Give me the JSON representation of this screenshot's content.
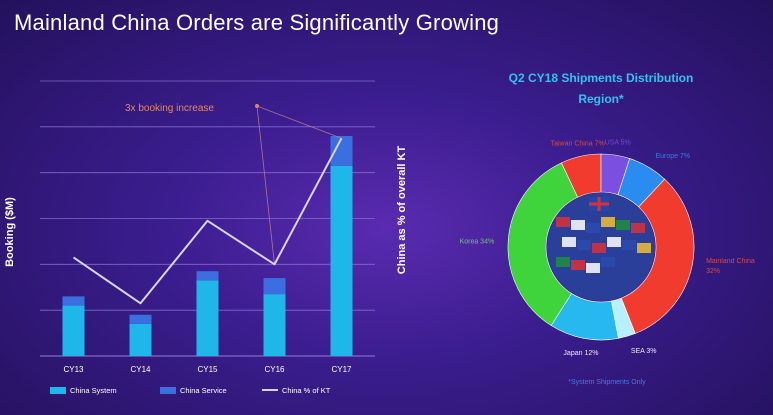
{
  "slide": {
    "title": "Mainland China Orders are Significantly Growing",
    "background_color": "#3b1d8f"
  },
  "chart_data": [
    {
      "type": "bar",
      "stacked": true,
      "categories": [
        "CY13",
        "CY14",
        "CY15",
        "CY16",
        "CY17"
      ],
      "series": [
        {
          "name": "China System",
          "kind": "bar",
          "color": "#1fb6ea",
          "values": [
            22,
            14,
            33,
            27,
            83
          ]
        },
        {
          "name": "China Service",
          "kind": "bar",
          "color": "#3a6fe0",
          "values": [
            4,
            4,
            4,
            7,
            13
          ]
        },
        {
          "name": "China % of KT",
          "kind": "line",
          "color": "#d7d4ec",
          "axis": "right",
          "values": [
            43,
            23,
            59,
            40,
            95
          ]
        }
      ],
      "ylabel": "Booking ($M)",
      "y2label": "China as % of overall KT",
      "ylim": [
        0,
        120
      ],
      "grid": true,
      "legend": "bottom",
      "annotation": "3x booking increase"
    },
    {
      "type": "pie",
      "donut": true,
      "title": "Q2 CY18 Shipments Distribution",
      "subtitle": "Region*",
      "slices": [
        {
          "label": "Taiwan China",
          "value_text": "7%",
          "value": 7,
          "color": "#f23b2f"
        },
        {
          "label": "USA",
          "value_text": "5%",
          "value": 5,
          "color": "#7b4fe0"
        },
        {
          "label": "Europe",
          "value_text": "7%",
          "value": 7,
          "color": "#2a8cf0"
        },
        {
          "label": "Mainland China",
          "value_text": "32%",
          "value": 32,
          "color": "#f23b2f"
        },
        {
          "label": "SEA",
          "value_text": "3%",
          "value": 3,
          "color": "#b8f0ff"
        },
        {
          "label": "Japan",
          "value_text": "12%",
          "value": 12,
          "color": "#28b8f0"
        },
        {
          "label": "Korea",
          "value_text": "34%",
          "value": 34,
          "color": "#3fd43c"
        }
      ],
      "footnote": "*System Shipments Only"
    }
  ]
}
